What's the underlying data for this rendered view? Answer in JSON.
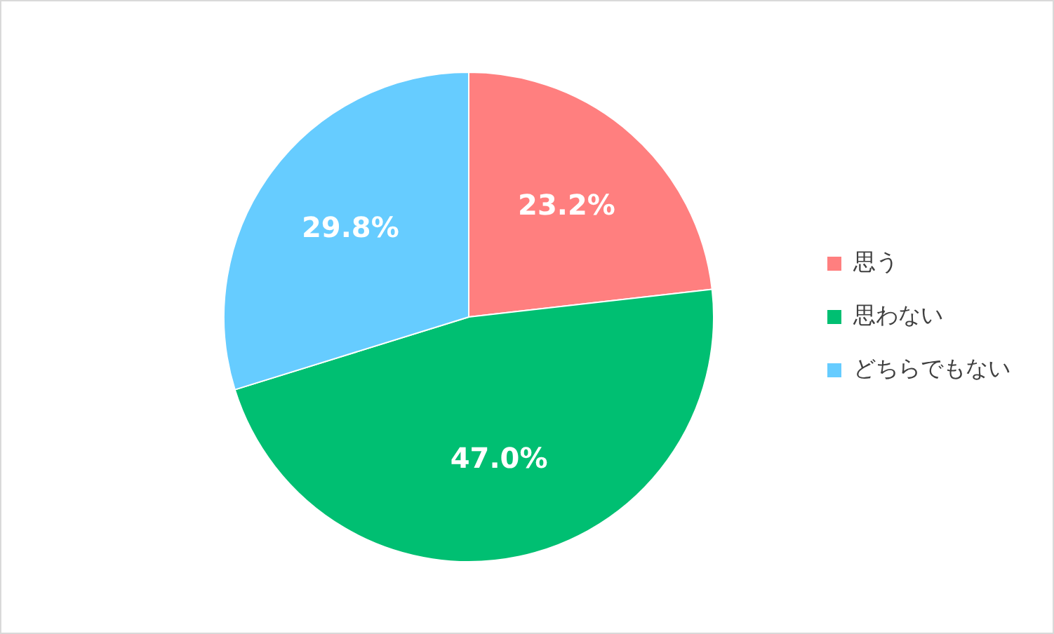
{
  "chart_data": {
    "type": "pie",
    "categories": [
      "思う",
      "思わない",
      "どちらでもない"
    ],
    "values": [
      23.2,
      47.0,
      29.8
    ],
    "colors": [
      "#ff7f7f",
      "#00bf72",
      "#66ccff"
    ],
    "value_labels": [
      "23.2%",
      "47.0%",
      "29.8%"
    ],
    "legend": "right"
  }
}
